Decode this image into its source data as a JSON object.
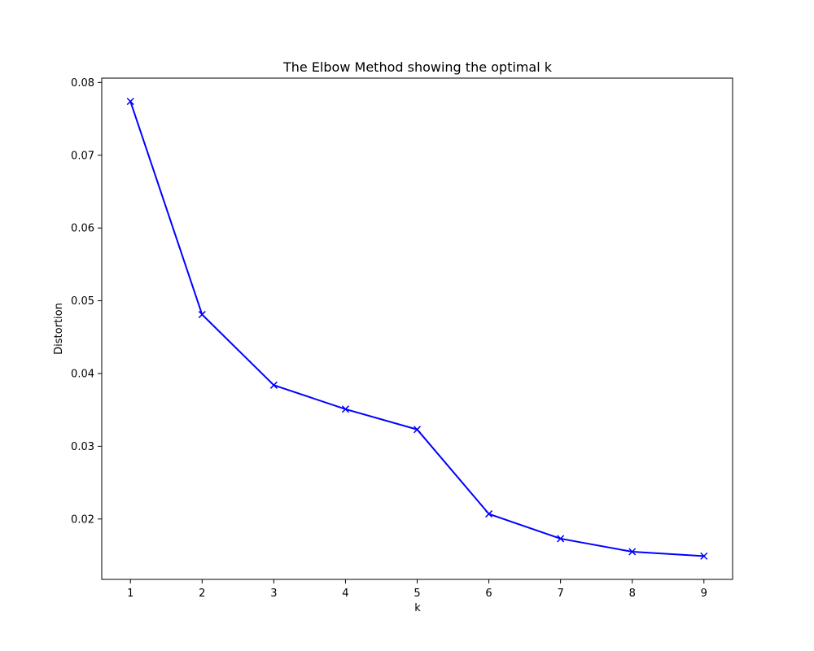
{
  "chart_data": {
    "type": "line",
    "title": "The Elbow Method showing the optimal k",
    "xlabel": "k",
    "ylabel": "Distortion",
    "x": [
      1,
      2,
      3,
      4,
      5,
      6,
      7,
      8,
      9
    ],
    "series": [
      {
        "values": [
          0.0774,
          0.0481,
          0.0384,
          0.0351,
          0.0323,
          0.0207,
          0.0173,
          0.0155,
          0.0149
        ],
        "color": "#0000ff",
        "marker": "x"
      }
    ],
    "xlim": [
      0.6,
      9.4
    ],
    "ylim": [
      0.0117,
      0.0806
    ],
    "xticks": [
      1,
      2,
      3,
      4,
      5,
      6,
      7,
      8,
      9
    ],
    "yticks": [
      0.02,
      0.03,
      0.04,
      0.05,
      0.06,
      0.07,
      0.08
    ],
    "ytick_labels": [
      "0.02",
      "0.03",
      "0.04",
      "0.05",
      "0.06",
      "0.07",
      "0.08"
    ],
    "grid": false,
    "legend": false
  }
}
